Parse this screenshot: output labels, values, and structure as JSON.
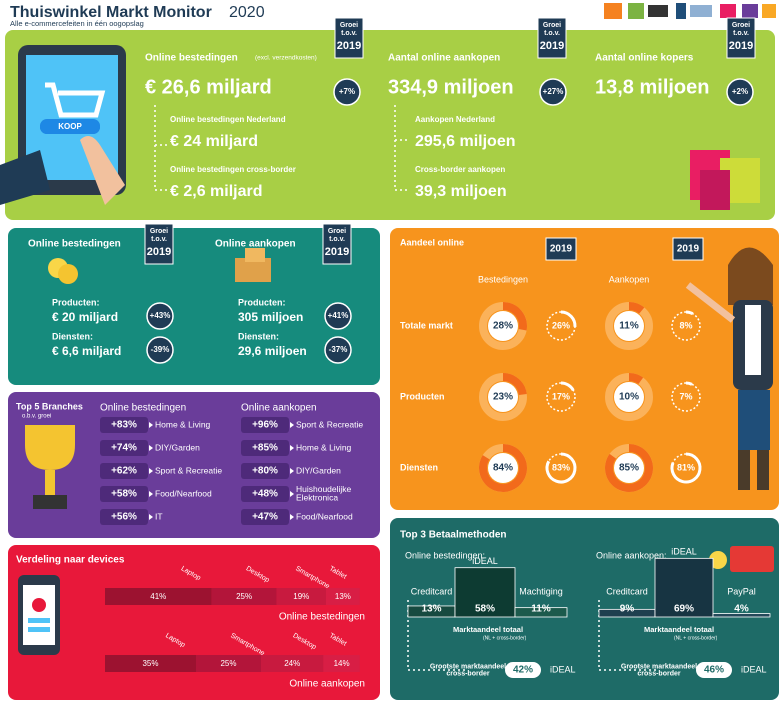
{
  "header": {
    "title": "Thuiswinkel Markt Monitor",
    "year": "2020",
    "subtitle": "Alle e-commercefeiten in één oogopslag"
  },
  "badge": {
    "line1": "Groei",
    "line2": "t.o.v.",
    "year": "2019"
  },
  "overview": {
    "spending": {
      "label": "Online bestedingen",
      "note": "(excl. verzendkosten)",
      "value": "€ 26,6 miljard",
      "growth": "+7%",
      "parts": [
        {
          "label": "Online bestedingen Nederland",
          "value": "€ 24 miljard"
        },
        {
          "label": "Online bestedingen cross-border",
          "value": "€ 2,6 miljard"
        }
      ]
    },
    "purchases": {
      "label": "Aantal online aankopen",
      "value": "334,9 miljoen",
      "growth": "+27%",
      "parts": [
        {
          "label": "Aankopen Nederland",
          "value": "295,6 miljoen"
        },
        {
          "label": "Cross-border aankopen",
          "value": "39,3 miljoen"
        }
      ]
    },
    "buyers": {
      "label": "Aantal online kopers",
      "value": "13,8 miljoen",
      "growth": "+2%"
    },
    "button": "KOOP"
  },
  "split": {
    "spending": {
      "label": "Online bestedingen",
      "rows": [
        {
          "label": "Producten:",
          "value": "€ 20 miljard",
          "growth": "+43%"
        },
        {
          "label": "Diensten:",
          "value": "€ 6,6 miljard",
          "growth": "-39%"
        }
      ]
    },
    "purchases": {
      "label": "Online aankopen",
      "rows": [
        {
          "label": "Producten:",
          "value": "305 miljoen",
          "growth": "+41%"
        },
        {
          "label": "Diensten:",
          "value": "29,6 miljoen",
          "growth": "-37%"
        }
      ]
    }
  },
  "share": {
    "title": "Aandeel online",
    "year": "2019",
    "columns": [
      "Bestedingen",
      "Aankopen"
    ],
    "rows": [
      {
        "label": "Totale markt",
        "values": [
          28,
          26,
          11,
          8
        ],
        "value_labels": [
          "28%",
          "26%",
          "11%",
          "8%"
        ]
      },
      {
        "label": "Producten",
        "values": [
          23,
          17,
          10,
          7
        ],
        "value_labels": [
          "23%",
          "17%",
          "10%",
          "7%"
        ]
      },
      {
        "label": "Diensten",
        "values": [
          84,
          83,
          85,
          81
        ],
        "value_labels": [
          "84%",
          "83%",
          "85%",
          "81%"
        ]
      }
    ]
  },
  "branches": {
    "title": "Top 5 Branches",
    "subtitle": "o.b.v. groei",
    "columns": [
      {
        "label": "Online bestedingen",
        "items": [
          {
            "growth": "+83%",
            "label": "Home & Living"
          },
          {
            "growth": "+74%",
            "label": "DIY/Garden"
          },
          {
            "growth": "+62%",
            "label": "Sport & Recreatie"
          },
          {
            "growth": "+58%",
            "label": "Food/Nearfood"
          },
          {
            "growth": "+56%",
            "label": "IT"
          }
        ]
      },
      {
        "label": "Online aankopen",
        "items": [
          {
            "growth": "+96%",
            "label": "Sport & Recreatie"
          },
          {
            "growth": "+85%",
            "label": "Home & Living"
          },
          {
            "growth": "+80%",
            "label": "DIY/Garden"
          },
          {
            "growth": "+48%",
            "label": "Huishoudelijke Elektronica"
          },
          {
            "growth": "+47%",
            "label": "Food/Nearfood"
          }
        ]
      }
    ]
  },
  "devices": {
    "title": "Verdeling naar devices",
    "bars": [
      {
        "label": "Online bestedingen",
        "segments": [
          {
            "name": "Laptop",
            "value": 41,
            "value_label": "41%"
          },
          {
            "name": "Desktop",
            "value": 25,
            "value_label": "25%"
          },
          {
            "name": "Smartphone",
            "value": 19,
            "value_label": "19%"
          },
          {
            "name": "Tablet",
            "value": 13,
            "value_label": "13%"
          }
        ]
      },
      {
        "label": "Online aankopen",
        "segments": [
          {
            "name": "Laptop",
            "value": 35,
            "value_label": "35%"
          },
          {
            "name": "Smartphone",
            "value": 25,
            "value_label": "25%"
          },
          {
            "name": "Desktop",
            "value": 24,
            "value_label": "24%"
          },
          {
            "name": "Tablet",
            "value": 14,
            "value_label": "14%"
          }
        ]
      }
    ]
  },
  "payments": {
    "title": "Top 3 Betaalmethoden",
    "note": "Marktaandeel totaal",
    "note_detail": "(NL + cross-border)",
    "cross_border_label": "Grootste marktaandeel cross-border",
    "groups": [
      {
        "label": "Online bestedingen:",
        "methods": [
          {
            "name": "Creditcard",
            "value": 13,
            "value_label": "13%"
          },
          {
            "name": "iDEAL",
            "value": 58,
            "value_label": "58%"
          },
          {
            "name": "Machtiging",
            "value": 11,
            "value_label": "11%"
          }
        ],
        "cross_border": {
          "value": "42%",
          "method": "iDEAL"
        }
      },
      {
        "label": "Online aankopen:",
        "methods": [
          {
            "name": "Creditcard",
            "value": 9,
            "value_label": "9%"
          },
          {
            "name": "iDEAL",
            "value": 69,
            "value_label": "69%"
          },
          {
            "name": "PayPal",
            "value": 4,
            "value_label": "4%"
          }
        ],
        "cross_border": {
          "value": "46%",
          "method": "iDEAL"
        }
      }
    ]
  }
}
